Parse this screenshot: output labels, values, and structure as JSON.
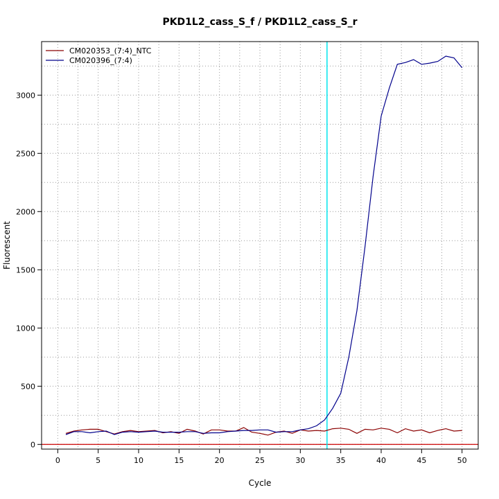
{
  "chart_data": {
    "type": "line",
    "title": "PKD1L2_cass_S_f / PKD1L2_cass_S_r",
    "xlabel": "Cycle",
    "ylabel": "Fluorescent",
    "xlim": [
      -2,
      52
    ],
    "ylim": [
      -40,
      3460
    ],
    "x_ticks": [
      0,
      5,
      10,
      15,
      20,
      25,
      30,
      35,
      40,
      45,
      50
    ],
    "y_ticks": [
      0,
      500,
      1000,
      1500,
      2000,
      2500,
      3000
    ],
    "grid": true,
    "legend_position": "top-left",
    "threshold": {
      "value": 0,
      "color": "#cc0000"
    },
    "threshold_cycle": {
      "value": 33.3,
      "color": "#00e5ee"
    },
    "series": [
      {
        "name": "CM020353_(7:4)_NTC",
        "color": "#8b0000",
        "x": [
          1,
          2,
          3,
          4,
          5,
          6,
          7,
          8,
          9,
          10,
          11,
          12,
          13,
          14,
          15,
          16,
          17,
          18,
          19,
          20,
          21,
          22,
          23,
          24,
          25,
          26,
          27,
          28,
          29,
          30,
          31,
          32,
          33,
          34,
          35,
          36,
          37,
          38,
          39,
          40,
          41,
          42,
          43,
          44,
          45,
          46,
          47,
          48,
          49,
          50
        ],
        "values": [
          95,
          115,
          125,
          130,
          130,
          110,
          90,
          110,
          120,
          110,
          115,
          120,
          100,
          110,
          95,
          130,
          115,
          90,
          125,
          125,
          115,
          115,
          145,
          105,
          95,
          80,
          105,
          115,
          95,
          125,
          115,
          120,
          115,
          135,
          140,
          130,
          95,
          130,
          125,
          140,
          130,
          100,
          135,
          115,
          125,
          100,
          120,
          135,
          115,
          120
        ]
      },
      {
        "name": "CM020396_(7:4)",
        "color": "#00008b",
        "x": [
          1,
          2,
          3,
          4,
          5,
          6,
          7,
          8,
          9,
          10,
          11,
          12,
          13,
          14,
          15,
          16,
          17,
          18,
          19,
          20,
          21,
          22,
          23,
          24,
          25,
          26,
          27,
          28,
          29,
          30,
          31,
          32,
          33,
          34,
          35,
          36,
          37,
          38,
          39,
          40,
          41,
          42,
          43,
          44,
          45,
          46,
          47,
          48,
          49,
          50
        ],
        "values": [
          85,
          110,
          110,
          100,
          110,
          115,
          85,
          105,
          110,
          105,
          110,
          115,
          105,
          105,
          105,
          110,
          110,
          95,
          100,
          100,
          110,
          115,
          120,
          120,
          125,
          125,
          105,
          110,
          110,
          125,
          135,
          160,
          210,
          310,
          440,
          750,
          1150,
          1700,
          2300,
          2820,
          3060,
          3265,
          3280,
          3305,
          3265,
          3275,
          3290,
          3335,
          3320,
          3235
        ]
      }
    ]
  }
}
